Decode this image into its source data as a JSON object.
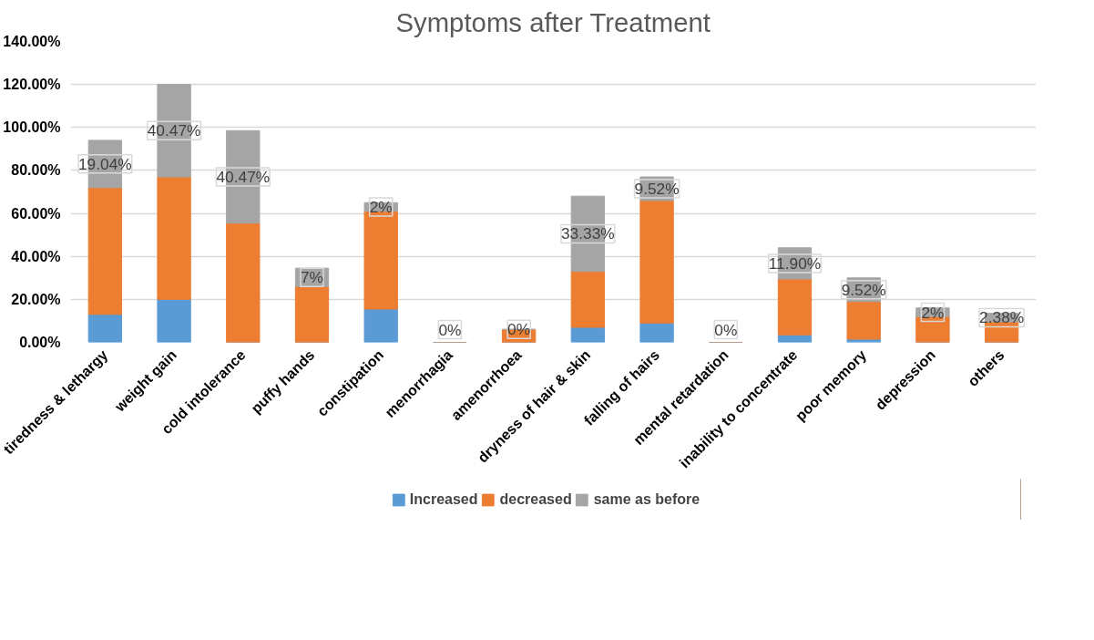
{
  "chart_data": {
    "type": "bar",
    "title": "Symptoms after Treatment",
    "stacked": true,
    "categories": [
      "tiredness & lethargy",
      "weight gain",
      "cold intolerance",
      "puffy hands",
      "constipation",
      "menorrhagia",
      "amenorrhoea",
      "dryness of hair & skin",
      "falling of hairs",
      "mental retardation",
      "inability to concentrate",
      "poor memory",
      "depression",
      "others"
    ],
    "series": [
      {
        "name": "Increased",
        "color": "#5b9bd5",
        "values": [
          13,
          20,
          0,
          0,
          15.5,
          0,
          0,
          7,
          9,
          0,
          3.5,
          1.5,
          0,
          0
        ]
      },
      {
        "name": "decreased",
        "color": "#ed7d31",
        "values": [
          59,
          57,
          55.5,
          26,
          45.5,
          0,
          6,
          26,
          57,
          0,
          26,
          17.5,
          12,
          9.5
        ]
      },
      {
        "name": "same as before",
        "color": "#a5a5a5",
        "values": [
          22,
          43,
          43,
          8.5,
          4,
          0,
          0,
          35,
          11,
          0,
          14.5,
          11,
          4,
          4
        ]
      }
    ],
    "annotations": [
      "19.04%",
      "40.47%",
      "40.47%",
      "7%",
      "2%",
      "0%",
      "0%",
      "33.33%",
      "9.52%",
      "0%",
      "11.90%",
      "9.52%",
      "2%",
      "2.38%"
    ],
    "ylim": [
      0,
      140
    ],
    "yticks": [
      {
        "value": 0,
        "label": "0.00%"
      },
      {
        "value": 20,
        "label": "20.00%"
      },
      {
        "value": 40,
        "label": "40.00%"
      },
      {
        "value": 60,
        "label": "60.00%"
      },
      {
        "value": 80,
        "label": "80.00%"
      },
      {
        "value": 100,
        "label": "100.00%"
      },
      {
        "value": 120,
        "label": "120.00%"
      },
      {
        "value": 140,
        "label": "140.00%"
      }
    ],
    "grid": "y",
    "legend": "bottom"
  }
}
